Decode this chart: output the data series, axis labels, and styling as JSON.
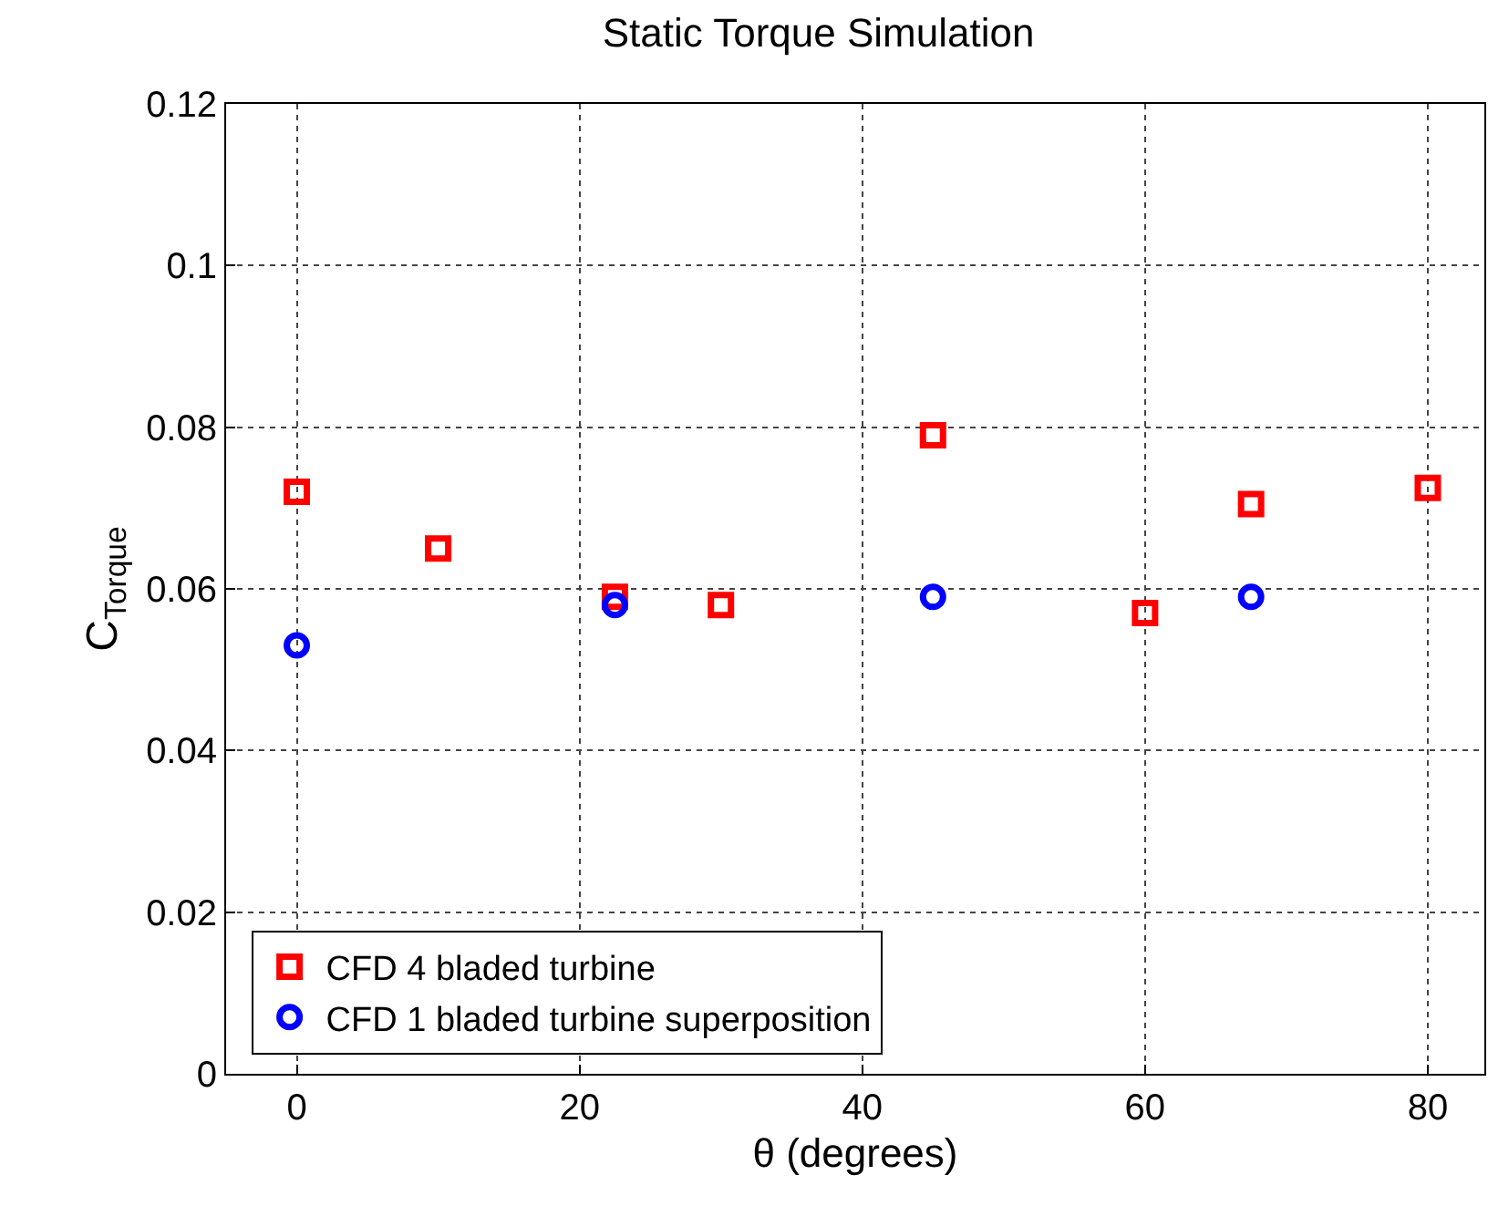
{
  "chart_data": {
    "type": "scatter",
    "title": "Static Torque Simulation",
    "xlabel": "θ (degrees)",
    "ylabel": "C$_{Torque}$",
    "series": [
      {
        "name": "CFD 4 bladed turbine",
        "color": "#ff0000",
        "marker": "square",
        "x": [
          0,
          10,
          22.5,
          30,
          45,
          60,
          67.5,
          80
        ],
        "values": [
          0.072,
          0.065,
          0.059,
          0.058,
          0.079,
          0.057,
          0.0705,
          0.0725
        ]
      },
      {
        "name": "CFD 1 bladed turbine superposition",
        "color": "#0000ff",
        "marker": "circle",
        "x": [
          0,
          22.5,
          45,
          67.5
        ],
        "values": [
          0.053,
          0.058,
          0.059,
          0.059
        ]
      }
    ],
    "xlim": [
      -5,
      84
    ],
    "xticks": [
      0,
      20,
      40,
      60,
      80
    ],
    "ylim": [
      0,
      0.12
    ],
    "yticks": [
      0,
      0.02,
      0.04,
      0.06,
      0.08,
      {
        "value": 0.1,
        "label": "0.1"
      },
      0.12
    ],
    "grid": true,
    "legend": "bottom left"
  }
}
